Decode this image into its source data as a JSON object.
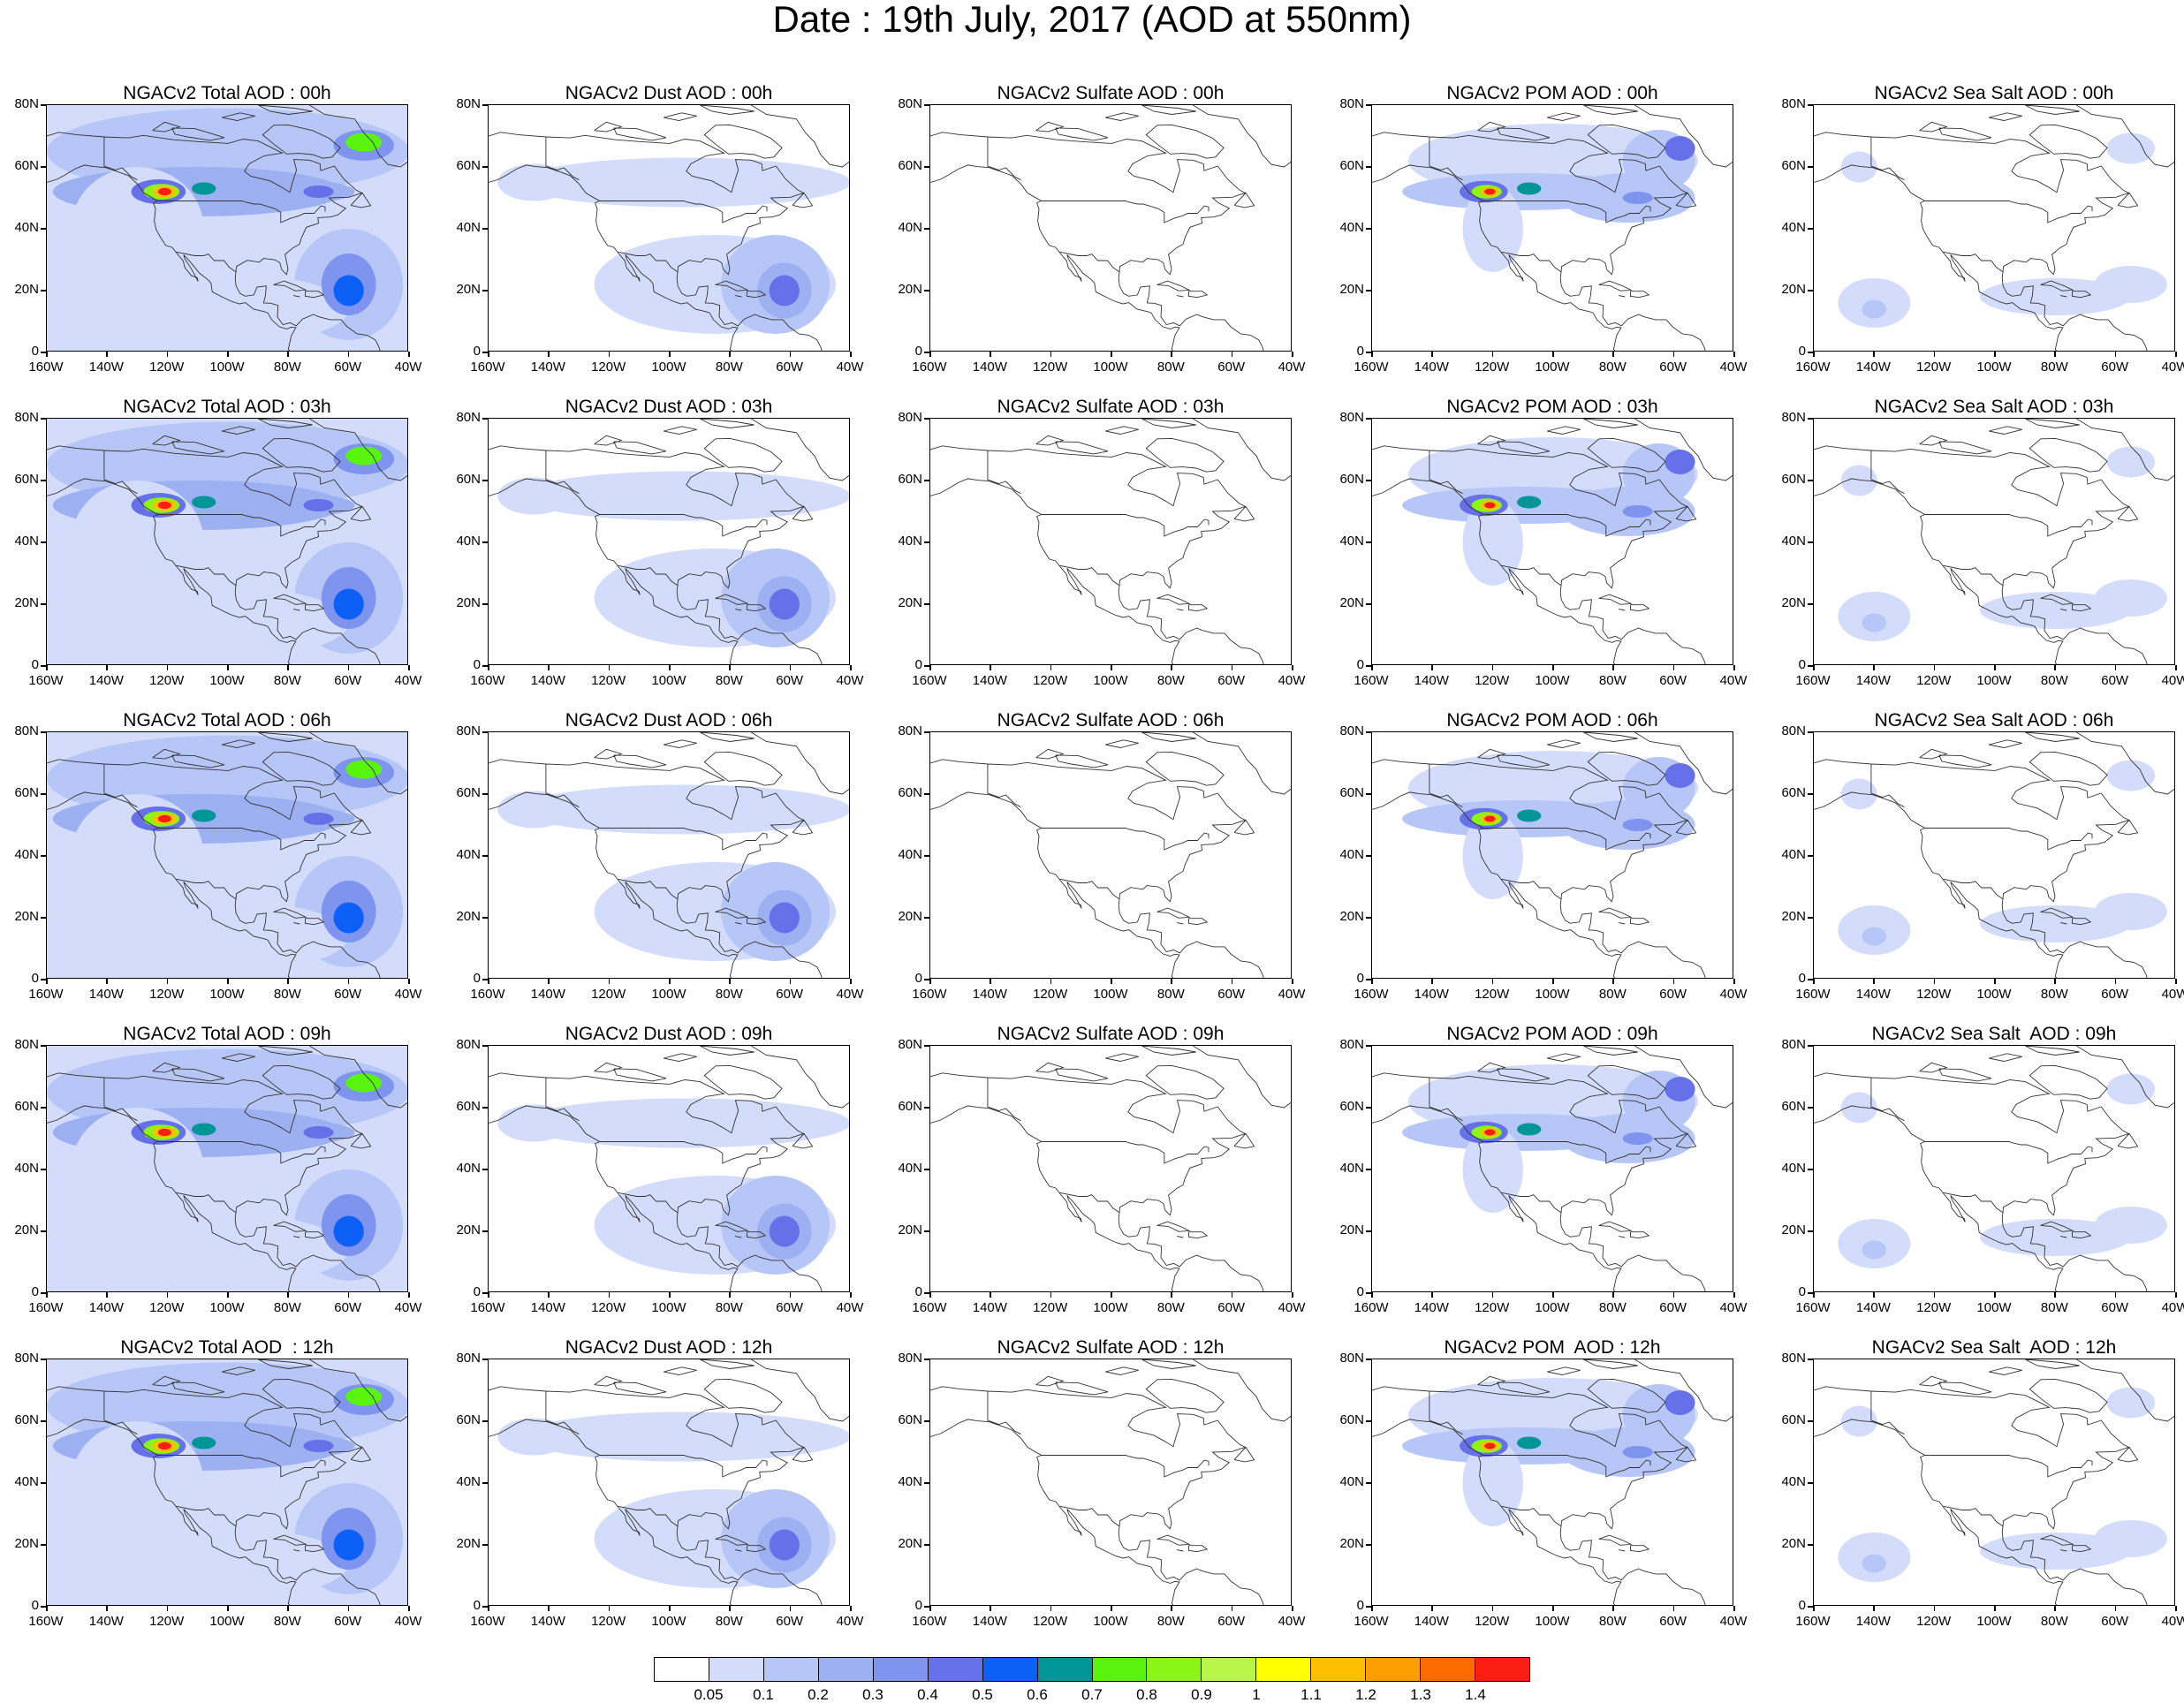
{
  "title": "Date : 19th July, 2017 (AOD at 550nm)",
  "panels": [
    [
      "NGACv2 Total AOD : 00h",
      "NGACv2 Dust AOD : 00h",
      "NGACv2 Sulfate AOD : 00h",
      "NGACv2 POM AOD : 00h",
      "NGACv2 Sea Salt AOD : 00h"
    ],
    [
      "NGACv2 Total AOD : 03h",
      "NGACv2 Dust AOD : 03h",
      "NGACv2 Sulfate AOD : 03h",
      "NGACv2 POM AOD : 03h",
      "NGACv2 Sea Salt AOD : 03h"
    ],
    [
      "NGACv2 Total AOD : 06h",
      "NGACv2 Dust AOD : 06h",
      "NGACv2 Sulfate AOD : 06h",
      "NGACv2 POM AOD : 06h",
      "NGACv2 Sea Salt AOD : 06h"
    ],
    [
      "NGACv2 Total AOD : 09h",
      "NGACv2 Dust AOD : 09h",
      "NGACv2 Sulfate AOD : 09h",
      "NGACv2 POM AOD : 09h",
      "NGACv2 Sea Salt  AOD : 09h"
    ],
    [
      "NGACv2 Total AOD  : 12h",
      "NGACv2 Dust AOD : 12h",
      "NGACv2 Sulfate AOD : 12h",
      "NGACv2 POM  AOD : 12h",
      "NGACv2 Sea Salt  AOD : 12h"
    ]
  ],
  "lat_labels": [
    "80N",
    "60N",
    "40N",
    "20N",
    "0"
  ],
  "lon_labels": [
    "160W",
    "140W",
    "120W",
    "100W",
    "80W",
    "60W",
    "40W"
  ],
  "colorbar": {
    "labels": [
      "0.05",
      "0.1",
      "0.2",
      "0.3",
      "0.4",
      "0.5",
      "0.6",
      "0.7",
      "0.8",
      "0.9",
      "1",
      "1.1",
      "1.2",
      "1.3",
      "1.4"
    ],
    "colors": [
      "#ffffff",
      "#d3ddfb",
      "#b6c6f6",
      "#9cb0f2",
      "#7e94ee",
      "#6670e8",
      "#0c5ff7",
      "#009596",
      "#59f40e",
      "#8bf517",
      "#b9f549",
      "#ffff00",
      "#fdbf00",
      "#fc9d00",
      "#fc6a00",
      "#fc1e12"
    ]
  }
}
